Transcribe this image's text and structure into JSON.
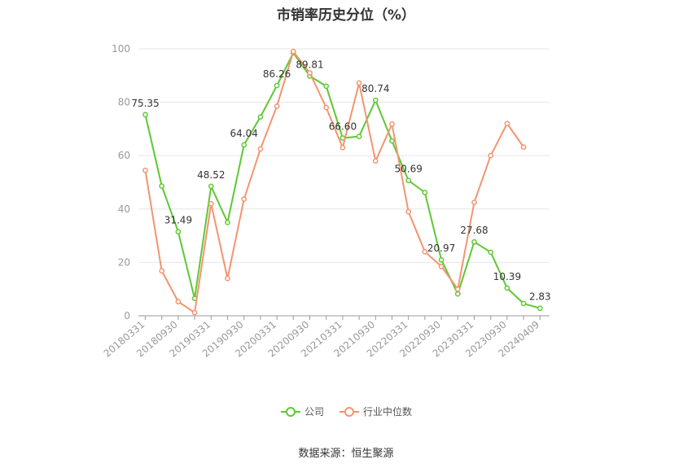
{
  "source": "数据来源：恒生聚源",
  "colors": {
    "company": "#5ec832",
    "industry": "#f39470",
    "grid": "#e6e6e6",
    "axis": "#999999"
  },
  "chart_data": {
    "type": "line",
    "title": "市销率历史分位（%）",
    "xlabel": "",
    "ylabel": "",
    "ylim": [
      0,
      100
    ],
    "yticks": [
      0,
      20,
      40,
      60,
      80,
      100
    ],
    "grid": true,
    "legend_position": "bottom-center",
    "x": [
      "20180331",
      "20180630",
      "20180930",
      "20181231",
      "20190331",
      "20190630",
      "20190930",
      "20191231",
      "20200331",
      "20200630",
      "20200930",
      "20201231",
      "20210331",
      "20210630",
      "20210930",
      "20211231",
      "20220331",
      "20220630",
      "20220930",
      "20221231",
      "20230331",
      "20230630",
      "20230930",
      "20231231",
      "20240409"
    ],
    "x_tick_labels": [
      "20180331",
      "20180930",
      "20190331",
      "20190930",
      "20200331",
      "20200930",
      "20210331",
      "20210930",
      "20220331",
      "20220930",
      "20230331",
      "20230930",
      "20240409"
    ],
    "series": [
      {
        "name": "公司",
        "values": [
          75.35,
          48.6,
          31.49,
          6.5,
          48.52,
          35.0,
          64.04,
          74.5,
          86.26,
          98.5,
          89.81,
          86.0,
          66.6,
          67.2,
          80.74,
          65.5,
          50.69,
          46.2,
          20.97,
          8.2,
          27.68,
          23.8,
          10.39,
          4.6,
          2.83
        ],
        "labels": {
          "0": "75.35",
          "2": "31.49",
          "4": "48.52",
          "6": "64.04",
          "8": "86.26",
          "10": "89.81",
          "12": "66.60",
          "14": "80.74",
          "16": "50.69",
          "18": "20.97",
          "20": "27.68",
          "22": "10.39",
          "24": "2.83"
        }
      },
      {
        "name": "行业中位数",
        "values": [
          54.5,
          16.8,
          5.3,
          1.2,
          42.0,
          14.0,
          43.7,
          62.5,
          78.5,
          99.0,
          91.0,
          78.0,
          63.0,
          87.2,
          58.0,
          71.8,
          39.0,
          24.0,
          18.5,
          10.0,
          42.5,
          60.0,
          72.0,
          63.2,
          null
        ]
      }
    ]
  }
}
